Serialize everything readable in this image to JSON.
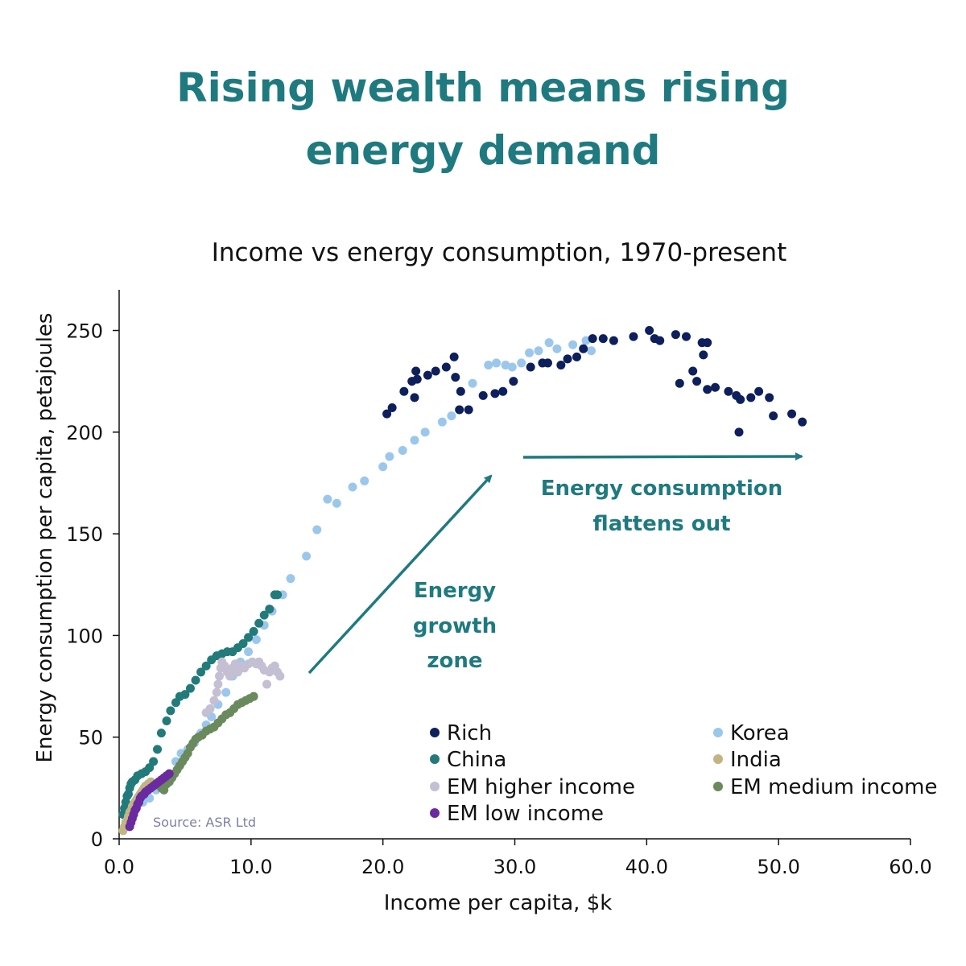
{
  "header": {
    "title_line1": "Rising wealth means rising",
    "title_line2": "energy demand",
    "subtitle": "Income vs energy consumption, 1970-present"
  },
  "source": "Source: ASR Ltd",
  "annotations": [
    {
      "lines": [
        "Energy",
        "growth",
        "zone"
      ],
      "color": "#1f7a80"
    },
    {
      "lines": [
        "Energy consumption",
        "flattens out"
      ],
      "color": "#1f7a80"
    }
  ],
  "chart_data": {
    "type": "scatter",
    "title": "Income vs energy consumption, 1970-present",
    "xlabel": "Income per capita, $k",
    "ylabel": "Energy consumption per capita, petajoules",
    "xlim": [
      0,
      60
    ],
    "ylim": [
      0,
      270
    ],
    "xticks": [
      "0.0",
      "10.0",
      "20.0",
      "30.0",
      "40.0",
      "50.0",
      "60.0"
    ],
    "yticks": [
      "0",
      "50",
      "100",
      "150",
      "200",
      "250"
    ],
    "grid": false,
    "legend_position": "bottom-right",
    "series": [
      {
        "name": "Rich",
        "color": "#0d1f5c",
        "points": [
          [
            20.3,
            209
          ],
          [
            20.7,
            212
          ],
          [
            21.6,
            220
          ],
          [
            22.2,
            225
          ],
          [
            22.4,
            217
          ],
          [
            22.5,
            230
          ],
          [
            22.6,
            226
          ],
          [
            23.4,
            228
          ],
          [
            24.0,
            230
          ],
          [
            24.8,
            232
          ],
          [
            25.4,
            237
          ],
          [
            25.5,
            227
          ],
          [
            25.8,
            211
          ],
          [
            25.9,
            220
          ],
          [
            26.5,
            211
          ],
          [
            27.6,
            218
          ],
          [
            28.5,
            219
          ],
          [
            29.1,
            220
          ],
          [
            29.9,
            225
          ],
          [
            31.2,
            232
          ],
          [
            32.1,
            234
          ],
          [
            32.5,
            234
          ],
          [
            33.5,
            233
          ],
          [
            34.0,
            236
          ],
          [
            34.7,
            237
          ],
          [
            35.2,
            241
          ],
          [
            35.9,
            246
          ],
          [
            36.7,
            246
          ],
          [
            37.5,
            245
          ],
          [
            39.0,
            247
          ],
          [
            40.2,
            250
          ],
          [
            40.6,
            246
          ],
          [
            41.0,
            245
          ],
          [
            42.2,
            248
          ],
          [
            42.5,
            224
          ],
          [
            43.0,
            247
          ],
          [
            43.5,
            230
          ],
          [
            43.8,
            225
          ],
          [
            44.2,
            244
          ],
          [
            44.3,
            238
          ],
          [
            44.6,
            244
          ],
          [
            44.6,
            221
          ],
          [
            45.2,
            222
          ],
          [
            46.2,
            220
          ],
          [
            46.8,
            218
          ],
          [
            47.1,
            216
          ],
          [
            47.0,
            200
          ],
          [
            47.9,
            217
          ],
          [
            48.5,
            220
          ],
          [
            49.3,
            217
          ],
          [
            49.6,
            208
          ],
          [
            51.0,
            209
          ],
          [
            51.8,
            205
          ]
        ]
      },
      {
        "name": "China",
        "color": "#237a7a",
        "points": [
          [
            0.3,
            12
          ],
          [
            0.4,
            15
          ],
          [
            0.5,
            18
          ],
          [
            0.6,
            21
          ],
          [
            0.7,
            22
          ],
          [
            0.8,
            25
          ],
          [
            0.9,
            27
          ],
          [
            1.0,
            28
          ],
          [
            1.2,
            29
          ],
          [
            1.4,
            31
          ],
          [
            1.7,
            32
          ],
          [
            2.0,
            33
          ],
          [
            2.3,
            35
          ],
          [
            2.6,
            38
          ],
          [
            2.9,
            44
          ],
          [
            3.2,
            52
          ],
          [
            3.6,
            58
          ],
          [
            3.9,
            63
          ],
          [
            4.3,
            67
          ],
          [
            4.6,
            70
          ],
          [
            5.0,
            71
          ],
          [
            5.4,
            74
          ],
          [
            5.8,
            78
          ],
          [
            6.2,
            82
          ],
          [
            6.6,
            85
          ],
          [
            7.0,
            88
          ],
          [
            7.4,
            90
          ],
          [
            7.8,
            91
          ],
          [
            8.2,
            92
          ],
          [
            8.6,
            92
          ],
          [
            9.0,
            94
          ],
          [
            9.4,
            96
          ],
          [
            9.8,
            99
          ],
          [
            10.2,
            102
          ],
          [
            10.6,
            106
          ],
          [
            11.0,
            110
          ],
          [
            11.4,
            113
          ],
          [
            11.8,
            120
          ],
          [
            12.0,
            120
          ]
        ]
      },
      {
        "name": "EM higher income",
        "color": "#c4bfd2",
        "points": [
          [
            6.6,
            62
          ],
          [
            6.9,
            64
          ],
          [
            7.2,
            68
          ],
          [
            7.4,
            72
          ],
          [
            7.5,
            76
          ],
          [
            7.6,
            80
          ],
          [
            7.7,
            84
          ],
          [
            7.8,
            87
          ],
          [
            8.0,
            85
          ],
          [
            8.2,
            82
          ],
          [
            8.4,
            80
          ],
          [
            8.6,
            84
          ],
          [
            8.8,
            86
          ],
          [
            9.0,
            82
          ],
          [
            9.3,
            85
          ],
          [
            9.5,
            84
          ],
          [
            9.8,
            86
          ],
          [
            10.1,
            87
          ],
          [
            10.4,
            86
          ],
          [
            10.6,
            87
          ],
          [
            10.8,
            85
          ],
          [
            11.0,
            83
          ],
          [
            11.2,
            76
          ],
          [
            11.4,
            82
          ],
          [
            11.6,
            84
          ],
          [
            11.8,
            85
          ],
          [
            12.0,
            82
          ],
          [
            12.2,
            80
          ]
        ]
      },
      {
        "name": "EM low income",
        "color": "#6a2aa0",
        "points": [
          [
            0.8,
            6
          ],
          [
            0.9,
            8
          ],
          [
            1.0,
            10
          ],
          [
            1.1,
            12
          ],
          [
            1.2,
            14
          ],
          [
            1.3,
            15
          ],
          [
            1.4,
            17
          ],
          [
            1.5,
            18
          ],
          [
            1.6,
            20
          ],
          [
            1.7,
            21
          ],
          [
            1.9,
            22
          ],
          [
            2.0,
            23
          ],
          [
            2.2,
            24
          ],
          [
            2.4,
            25
          ],
          [
            2.6,
            26
          ],
          [
            2.8,
            27
          ],
          [
            3.0,
            28
          ],
          [
            3.2,
            29
          ],
          [
            3.4,
            30
          ],
          [
            3.6,
            31
          ],
          [
            3.8,
            32
          ]
        ]
      },
      {
        "name": "Korea",
        "color": "#9cc7ec",
        "points": [
          [
            1.8,
            18
          ],
          [
            2.3,
            20
          ],
          [
            2.8,
            24
          ],
          [
            3.3,
            28
          ],
          [
            3.8,
            32
          ],
          [
            4.3,
            38
          ],
          [
            4.7,
            42
          ],
          [
            5.2,
            44
          ],
          [
            5.7,
            47
          ],
          [
            6.2,
            52
          ],
          [
            6.6,
            56
          ],
          [
            7.0,
            60
          ],
          [
            7.5,
            66
          ],
          [
            8.1,
            72
          ],
          [
            8.6,
            80
          ],
          [
            9.2,
            87
          ],
          [
            9.8,
            92
          ],
          [
            10.4,
            98
          ],
          [
            11.0,
            105
          ],
          [
            11.6,
            112
          ],
          [
            12.4,
            120
          ],
          [
            13.0,
            128
          ],
          [
            14.2,
            139
          ],
          [
            15.0,
            152
          ],
          [
            15.8,
            167
          ],
          [
            16.5,
            165
          ],
          [
            17.7,
            173
          ],
          [
            18.6,
            176
          ],
          [
            20.0,
            183
          ],
          [
            20.5,
            188
          ],
          [
            21.5,
            191
          ],
          [
            22.4,
            196
          ],
          [
            23.2,
            200
          ],
          [
            24.5,
            205
          ],
          [
            25.2,
            208
          ],
          [
            26.8,
            224
          ],
          [
            28.0,
            233
          ],
          [
            28.6,
            234
          ],
          [
            29.3,
            233
          ],
          [
            29.8,
            232
          ],
          [
            30.5,
            234
          ],
          [
            31.1,
            239
          ],
          [
            31.8,
            240
          ],
          [
            32.6,
            244
          ],
          [
            33.2,
            241
          ],
          [
            34.4,
            243
          ],
          [
            35.4,
            245
          ],
          [
            35.8,
            240
          ]
        ]
      },
      {
        "name": "India",
        "color": "#c2b583",
        "points": [
          [
            0.3,
            4
          ],
          [
            0.4,
            6
          ],
          [
            0.5,
            8
          ],
          [
            0.6,
            9
          ],
          [
            0.7,
            11
          ],
          [
            0.8,
            13
          ],
          [
            0.9,
            14
          ],
          [
            1.0,
            16
          ],
          [
            1.1,
            17
          ],
          [
            1.2,
            18
          ],
          [
            1.3,
            19
          ],
          [
            1.4,
            20
          ],
          [
            1.5,
            21
          ],
          [
            1.6,
            22
          ],
          [
            1.7,
            23
          ],
          [
            1.8,
            24
          ],
          [
            1.9,
            25
          ],
          [
            2.0,
            26
          ],
          [
            2.2,
            27
          ],
          [
            2.4,
            28
          ]
        ]
      },
      {
        "name": "EM medium income",
        "color": "#6a8a5e",
        "points": [
          [
            3.2,
            25
          ],
          [
            3.4,
            24
          ],
          [
            3.6,
            27
          ],
          [
            3.8,
            28
          ],
          [
            4.0,
            30
          ],
          [
            4.2,
            32
          ],
          [
            4.4,
            34
          ],
          [
            4.6,
            36
          ],
          [
            4.8,
            38
          ],
          [
            5.0,
            40
          ],
          [
            5.2,
            42
          ],
          [
            5.4,
            45
          ],
          [
            5.6,
            47
          ],
          [
            5.8,
            49
          ],
          [
            6.0,
            50
          ],
          [
            6.3,
            51
          ],
          [
            6.6,
            53
          ],
          [
            6.9,
            54
          ],
          [
            7.2,
            55
          ],
          [
            7.5,
            57
          ],
          [
            7.8,
            59
          ],
          [
            8.1,
            61
          ],
          [
            8.4,
            62
          ],
          [
            8.7,
            64
          ],
          [
            9.0,
            66
          ],
          [
            9.3,
            67
          ],
          [
            9.6,
            68
          ],
          [
            9.9,
            69
          ],
          [
            10.2,
            70
          ]
        ]
      }
    ]
  }
}
